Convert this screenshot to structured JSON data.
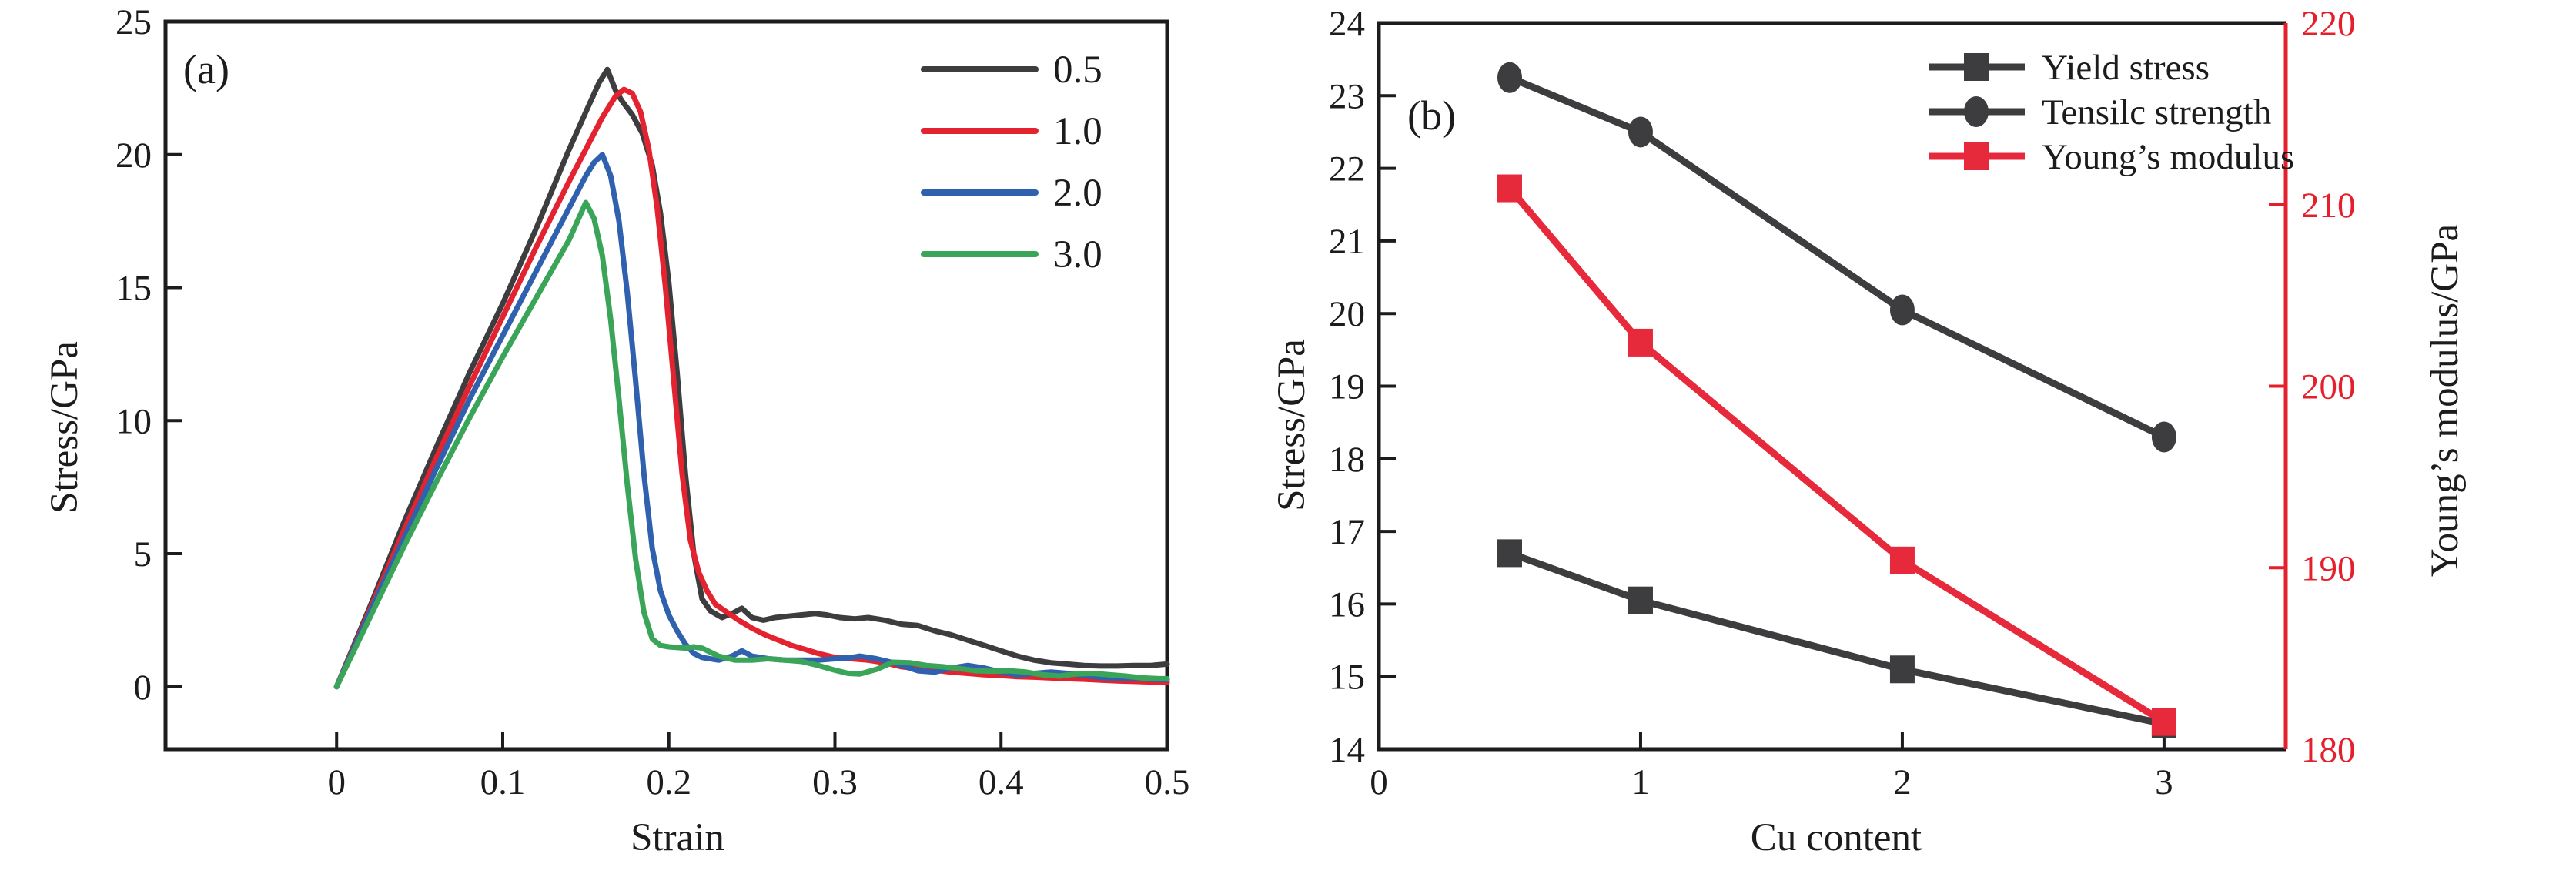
{
  "figure": {
    "background": "#ffffff"
  },
  "chart_data": [
    {
      "id": "a",
      "type": "line",
      "panel_label": "(a)",
      "xlabel": "Strain",
      "ylabel": "Stress/GPa",
      "xlim": [
        -0.103,
        0.5
      ],
      "ylim": [
        -2.35,
        25
      ],
      "xticks": [
        0,
        0.1,
        0.2,
        0.3,
        0.4,
        0.5
      ],
      "xtick_labels": [
        "0",
        "0.1",
        "0.2",
        "0.3",
        "0.4",
        "0.5"
      ],
      "yticks": [
        0,
        5,
        10,
        15,
        20,
        25
      ],
      "ytick_labels": [
        "0",
        "5",
        "10",
        "15",
        "20",
        "25"
      ],
      "grid": false,
      "legend": {
        "position": "top-right",
        "entries": [
          {
            "label": "0.5",
            "color": "#3d3d3f"
          },
          {
            "label": "1.0",
            "color": "#e32330"
          },
          {
            "label": "2.0",
            "color": "#3061ae"
          },
          {
            "label": "3.0",
            "color": "#3aa558"
          }
        ]
      },
      "series": [
        {
          "name": "0.5",
          "color": "#3d3d3f",
          "points": [
            [
              0,
              0
            ],
            [
              0.01,
              1.5
            ],
            [
              0.02,
              3.0
            ],
            [
              0.04,
              6.1
            ],
            [
              0.06,
              9.0
            ],
            [
              0.08,
              11.8
            ],
            [
              0.1,
              14.4
            ],
            [
              0.12,
              17.2
            ],
            [
              0.14,
              20.2
            ],
            [
              0.15,
              21.6
            ],
            [
              0.158,
              22.7
            ],
            [
              0.163,
              23.2
            ],
            [
              0.168,
              22.4
            ],
            [
              0.172,
              22.0
            ],
            [
              0.178,
              21.5
            ],
            [
              0.184,
              20.8
            ],
            [
              0.19,
              19.6
            ],
            [
              0.195,
              17.8
            ],
            [
              0.2,
              15.2
            ],
            [
              0.205,
              11.8
            ],
            [
              0.21,
              8.0
            ],
            [
              0.215,
              5.0
            ],
            [
              0.22,
              3.3
            ],
            [
              0.225,
              2.85
            ],
            [
              0.232,
              2.6
            ],
            [
              0.238,
              2.75
            ],
            [
              0.244,
              2.95
            ],
            [
              0.25,
              2.6
            ],
            [
              0.257,
              2.5
            ],
            [
              0.264,
              2.6
            ],
            [
              0.272,
              2.65
            ],
            [
              0.28,
              2.7
            ],
            [
              0.288,
              2.75
            ],
            [
              0.295,
              2.7
            ],
            [
              0.303,
              2.6
            ],
            [
              0.312,
              2.55
            ],
            [
              0.32,
              2.6
            ],
            [
              0.33,
              2.5
            ],
            [
              0.34,
              2.35
            ],
            [
              0.35,
              2.3
            ],
            [
              0.36,
              2.1
            ],
            [
              0.37,
              1.95
            ],
            [
              0.38,
              1.75
            ],
            [
              0.39,
              1.55
            ],
            [
              0.4,
              1.35
            ],
            [
              0.41,
              1.15
            ],
            [
              0.42,
              1.0
            ],
            [
              0.43,
              0.9
            ],
            [
              0.44,
              0.85
            ],
            [
              0.45,
              0.8
            ],
            [
              0.46,
              0.78
            ],
            [
              0.47,
              0.78
            ],
            [
              0.48,
              0.8
            ],
            [
              0.49,
              0.8
            ],
            [
              0.5,
              0.85
            ]
          ]
        },
        {
          "name": "1.0",
          "color": "#e32330",
          "points": [
            [
              0,
              0
            ],
            [
              0.02,
              2.9
            ],
            [
              0.04,
              5.8
            ],
            [
              0.06,
              8.6
            ],
            [
              0.08,
              11.3
            ],
            [
              0.1,
              13.9
            ],
            [
              0.12,
              16.5
            ],
            [
              0.14,
              19.0
            ],
            [
              0.15,
              20.2
            ],
            [
              0.16,
              21.4
            ],
            [
              0.168,
              22.2
            ],
            [
              0.173,
              22.45
            ],
            [
              0.178,
              22.3
            ],
            [
              0.183,
              21.6
            ],
            [
              0.188,
              20.2
            ],
            [
              0.193,
              18.0
            ],
            [
              0.198,
              15.0
            ],
            [
              0.203,
              11.5
            ],
            [
              0.208,
              8.0
            ],
            [
              0.213,
              5.5
            ],
            [
              0.218,
              4.3
            ],
            [
              0.223,
              3.6
            ],
            [
              0.228,
              3.1
            ],
            [
              0.235,
              2.8
            ],
            [
              0.242,
              2.5
            ],
            [
              0.25,
              2.2
            ],
            [
              0.258,
              1.95
            ],
            [
              0.266,
              1.75
            ],
            [
              0.274,
              1.55
            ],
            [
              0.282,
              1.4
            ],
            [
              0.29,
              1.25
            ],
            [
              0.3,
              1.1
            ],
            [
              0.31,
              1.05
            ],
            [
              0.32,
              1.0
            ],
            [
              0.33,
              0.9
            ],
            [
              0.34,
              0.75
            ],
            [
              0.35,
              0.68
            ],
            [
              0.36,
              0.62
            ],
            [
              0.37,
              0.55
            ],
            [
              0.38,
              0.5
            ],
            [
              0.39,
              0.45
            ],
            [
              0.4,
              0.42
            ],
            [
              0.41,
              0.38
            ],
            [
              0.42,
              0.36
            ],
            [
              0.43,
              0.33
            ],
            [
              0.44,
              0.3
            ],
            [
              0.45,
              0.28
            ],
            [
              0.46,
              0.25
            ],
            [
              0.47,
              0.22
            ],
            [
              0.48,
              0.2
            ],
            [
              0.49,
              0.18
            ],
            [
              0.5,
              0.15
            ]
          ]
        },
        {
          "name": "2.0",
          "color": "#3061ae",
          "points": [
            [
              0,
              0
            ],
            [
              0.02,
              2.8
            ],
            [
              0.04,
              5.5
            ],
            [
              0.06,
              8.2
            ],
            [
              0.08,
              10.8
            ],
            [
              0.1,
              13.2
            ],
            [
              0.12,
              15.6
            ],
            [
              0.13,
              16.8
            ],
            [
              0.14,
              18.0
            ],
            [
              0.15,
              19.2
            ],
            [
              0.155,
              19.7
            ],
            [
              0.16,
              20.0
            ],
            [
              0.165,
              19.2
            ],
            [
              0.17,
              17.5
            ],
            [
              0.175,
              14.8
            ],
            [
              0.18,
              11.5
            ],
            [
              0.185,
              8.0
            ],
            [
              0.19,
              5.2
            ],
            [
              0.195,
              3.6
            ],
            [
              0.2,
              2.7
            ],
            [
              0.205,
              2.1
            ],
            [
              0.21,
              1.6
            ],
            [
              0.215,
              1.25
            ],
            [
              0.22,
              1.1
            ],
            [
              0.23,
              1.0
            ],
            [
              0.238,
              1.15
            ],
            [
              0.244,
              1.35
            ],
            [
              0.25,
              1.15
            ],
            [
              0.26,
              1.05
            ],
            [
              0.27,
              1.0
            ],
            [
              0.28,
              1.0
            ],
            [
              0.29,
              1.0
            ],
            [
              0.3,
              1.05
            ],
            [
              0.31,
              1.1
            ],
            [
              0.315,
              1.15
            ],
            [
              0.325,
              1.05
            ],
            [
              0.335,
              0.9
            ],
            [
              0.345,
              0.7
            ],
            [
              0.35,
              0.6
            ],
            [
              0.36,
              0.55
            ],
            [
              0.37,
              0.7
            ],
            [
              0.38,
              0.8
            ],
            [
              0.39,
              0.7
            ],
            [
              0.4,
              0.55
            ],
            [
              0.41,
              0.45
            ],
            [
              0.42,
              0.5
            ],
            [
              0.43,
              0.55
            ],
            [
              0.44,
              0.5
            ],
            [
              0.45,
              0.42
            ],
            [
              0.46,
              0.35
            ],
            [
              0.47,
              0.32
            ],
            [
              0.48,
              0.3
            ],
            [
              0.49,
              0.28
            ],
            [
              0.5,
              0.26
            ]
          ]
        },
        {
          "name": "3.0",
          "color": "#3aa558",
          "points": [
            [
              0,
              0
            ],
            [
              0.02,
              2.6
            ],
            [
              0.04,
              5.2
            ],
            [
              0.06,
              7.7
            ],
            [
              0.08,
              10.1
            ],
            [
              0.1,
              12.4
            ],
            [
              0.12,
              14.6
            ],
            [
              0.13,
              15.7
            ],
            [
              0.14,
              16.8
            ],
            [
              0.145,
              17.5
            ],
            [
              0.15,
              18.2
            ],
            [
              0.155,
              17.6
            ],
            [
              0.16,
              16.2
            ],
            [
              0.165,
              13.8
            ],
            [
              0.17,
              10.8
            ],
            [
              0.175,
              7.6
            ],
            [
              0.18,
              4.8
            ],
            [
              0.185,
              2.8
            ],
            [
              0.19,
              1.8
            ],
            [
              0.195,
              1.55
            ],
            [
              0.2,
              1.5
            ],
            [
              0.21,
              1.45
            ],
            [
              0.215,
              1.5
            ],
            [
              0.22,
              1.45
            ],
            [
              0.23,
              1.15
            ],
            [
              0.24,
              1.0
            ],
            [
              0.25,
              1.0
            ],
            [
              0.26,
              1.05
            ],
            [
              0.27,
              1.0
            ],
            [
              0.28,
              0.95
            ],
            [
              0.29,
              0.8
            ],
            [
              0.3,
              0.62
            ],
            [
              0.308,
              0.5
            ],
            [
              0.315,
              0.48
            ],
            [
              0.325,
              0.65
            ],
            [
              0.335,
              0.92
            ],
            [
              0.345,
              0.9
            ],
            [
              0.355,
              0.8
            ],
            [
              0.365,
              0.75
            ],
            [
              0.375,
              0.68
            ],
            [
              0.385,
              0.6
            ],
            [
              0.395,
              0.58
            ],
            [
              0.405,
              0.6
            ],
            [
              0.415,
              0.55
            ],
            [
              0.425,
              0.45
            ],
            [
              0.435,
              0.4
            ],
            [
              0.445,
              0.48
            ],
            [
              0.455,
              0.5
            ],
            [
              0.465,
              0.45
            ],
            [
              0.475,
              0.4
            ],
            [
              0.485,
              0.33
            ],
            [
              0.495,
              0.3
            ],
            [
              0.5,
              0.3
            ]
          ]
        }
      ]
    },
    {
      "id": "b",
      "type": "line",
      "panel_label": "(b)",
      "xlabel": "Cu content",
      "ylabel_left": "Stress/GPa",
      "ylabel_right": "Young’s modulus/GPa",
      "xlim": [
        0,
        3.465
      ],
      "ylim_left": [
        14,
        24
      ],
      "ylim_right": [
        180,
        220
      ],
      "xticks": [
        0,
        1,
        2,
        3
      ],
      "xtick_labels": [
        "0",
        "1",
        "2",
        "3"
      ],
      "yticks_left": [
        14,
        15,
        16,
        17,
        18,
        19,
        20,
        21,
        22,
        23,
        24
      ],
      "ytick_labels_left": [
        "14",
        "15",
        "16",
        "17",
        "18",
        "19",
        "20",
        "21",
        "22",
        "23",
        "24"
      ],
      "yticks_right": [
        180,
        190,
        200,
        210,
        220
      ],
      "ytick_labels_right": [
        "180",
        "190",
        "200",
        "210",
        "220"
      ],
      "right_axis_color": "#e4202c",
      "grid": false,
      "legend": {
        "position": "top-right",
        "entries": [
          {
            "label": "Yield stress",
            "marker": "square",
            "color": "#3d3d3f"
          },
          {
            "label": "Tensilc strength",
            "marker": "circle",
            "color": "#3d3d3f"
          },
          {
            "label": "Young’s modulus",
            "marker": "square",
            "color": "#e7293c"
          }
        ]
      },
      "series": [
        {
          "name": "Yield stress",
          "axis": "left",
          "marker": "square",
          "color": "#3d3d3f",
          "x": [
            0.5,
            1,
            2,
            3
          ],
          "y": [
            16.7,
            16.05,
            15.1,
            14.35
          ]
        },
        {
          "name": "Tensilc strength",
          "axis": "left",
          "marker": "circle",
          "color": "#3d3d3f",
          "x": [
            0.5,
            1,
            2,
            3
          ],
          "y": [
            23.25,
            22.5,
            20.05,
            18.3
          ]
        },
        {
          "name": "Young’s modulus",
          "axis": "right",
          "marker": "square",
          "color": "#e7293c",
          "x": [
            0.5,
            1,
            2,
            3
          ],
          "y": [
            210.9,
            202.4,
            190.4,
            181.5
          ]
        }
      ]
    }
  ]
}
